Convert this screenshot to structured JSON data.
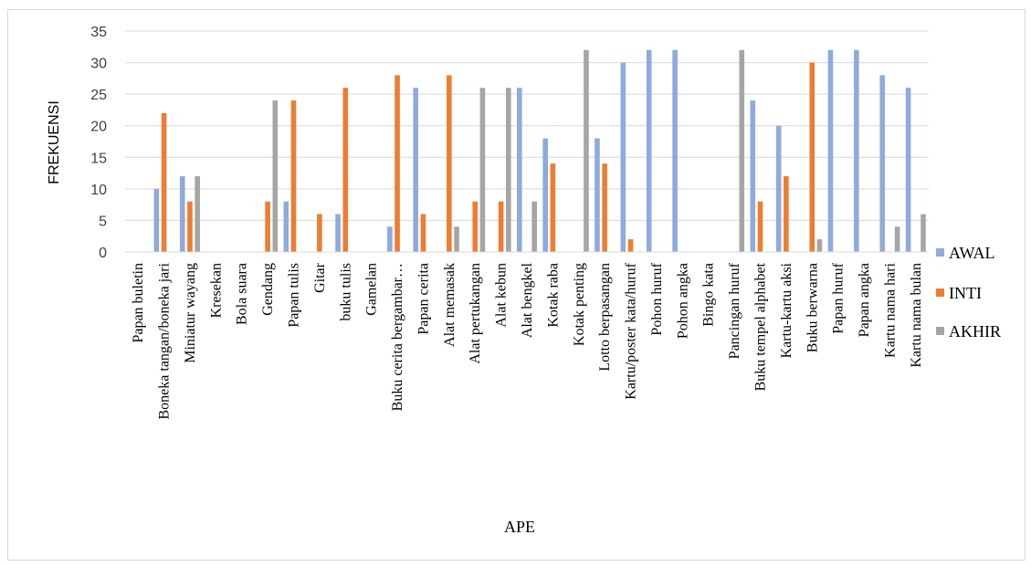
{
  "chart_data": {
    "type": "bar",
    "title": "",
    "xlabel": "APE",
    "ylabel": "FREKUENSI",
    "ylim": [
      0,
      35
    ],
    "yticks": [
      "0",
      "5",
      "10",
      "15",
      "20",
      "25",
      "30",
      "35"
    ],
    "grid": true,
    "legend_position": "right",
    "categories": [
      "Papan buletin",
      "Boneka tangan/boneka jari",
      "Miniatur wayang",
      "Kresekan",
      "Bola suara",
      "Gendang",
      "Papan tulis",
      "Gitar",
      "buku tulis",
      "Gamelan",
      "Buku cerita bergambar…",
      "Papan cerita",
      "Alat memasak",
      "Alat pertukangan",
      "Alat kebun",
      "Alat bengkel",
      "Kotak raba",
      "Kotak penting",
      "Lotto berpasangan",
      "Kartu/poster kata/huruf",
      "Pohon huruf",
      "Pohon angka",
      "Bingo kata",
      "Pancingan huruf",
      "Buku tempel alphabet",
      "Kartu-kartu aksi",
      "Buku berwarna",
      "Papan huruf",
      "Papan angka",
      "Kartu nama hari",
      "Kartu nama bulan"
    ],
    "series": [
      {
        "name": "AWAL",
        "color": "#8faadc",
        "values": [
          0,
          10,
          12,
          0,
          0,
          0,
          8,
          0,
          6,
          0,
          4,
          26,
          0,
          0,
          0,
          26,
          18,
          0,
          18,
          30,
          32,
          32,
          0,
          0,
          24,
          20,
          0,
          32,
          32,
          28,
          26
        ]
      },
      {
        "name": "INTI",
        "color": "#ed7d31",
        "values": [
          0,
          22,
          8,
          0,
          0,
          8,
          24,
          6,
          26,
          0,
          28,
          6,
          28,
          8,
          8,
          0,
          14,
          0,
          14,
          2,
          0,
          0,
          0,
          0,
          8,
          12,
          30,
          0,
          0,
          0,
          0
        ]
      },
      {
        "name": "AKHIR",
        "color": "#a5a5a5",
        "values": [
          0,
          0,
          12,
          0,
          0,
          24,
          0,
          0,
          0,
          0,
          0,
          0,
          4,
          26,
          26,
          8,
          0,
          32,
          0,
          0,
          0,
          0,
          0,
          32,
          0,
          0,
          2,
          0,
          0,
          4,
          6
        ]
      }
    ]
  }
}
